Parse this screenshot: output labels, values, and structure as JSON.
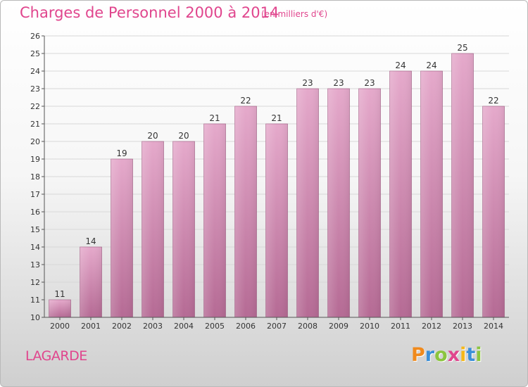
{
  "title": "Charges de Personnel 2000 à 2014",
  "subtitle": "(en milliers d'€)",
  "commune": "LAGARDE",
  "logo": {
    "text": "Proxiti",
    "colors": [
      "#f08a1d",
      "#3b8fd9",
      "#8bc53f",
      "#e0458d",
      "#f6b81a",
      "#3b8fd9",
      "#8bc53f"
    ]
  },
  "colors": {
    "bar": "#d88fb9",
    "accent": "#e0458d",
    "grid": "#d8d8d8",
    "axis": "#555555"
  },
  "chart_data": {
    "type": "bar",
    "title": "Charges de Personnel 2000 à 2014",
    "subtitle": "(en milliers d'€)",
    "categories": [
      "2000",
      "2001",
      "2002",
      "2003",
      "2004",
      "2005",
      "2006",
      "2007",
      "2008",
      "2009",
      "2010",
      "2011",
      "2012",
      "2013",
      "2014"
    ],
    "values": [
      11,
      14,
      19,
      20,
      20,
      21,
      22,
      21,
      23,
      23,
      23,
      24,
      24,
      25,
      22
    ],
    "data_labels": [
      "11",
      "14",
      "19",
      "20",
      "20",
      "21",
      "22",
      "21",
      "23",
      "23",
      "23",
      "24",
      "24",
      "25",
      "22"
    ],
    "yticks": [
      10,
      11,
      12,
      13,
      14,
      15,
      16,
      17,
      18,
      19,
      20,
      21,
      22,
      23,
      24,
      25,
      26
    ],
    "ylim": [
      10,
      26
    ],
    "xlabel": "",
    "ylabel": "",
    "grid": true
  }
}
